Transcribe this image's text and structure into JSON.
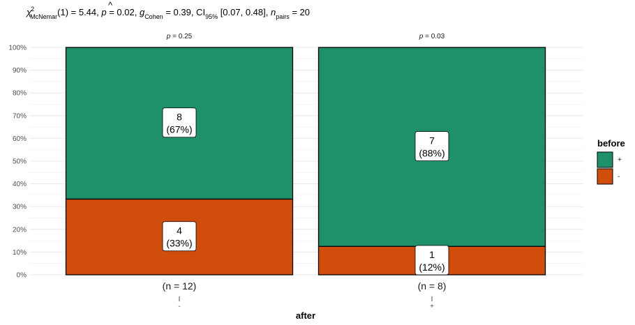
{
  "subtitle": {
    "stat_symbol": "χ",
    "stat_sup": "2",
    "stat_sub": "McNemar",
    "stat_value": "(1) = 5.44, ",
    "p_symbol": "p",
    "p_value": " = 0.02, ",
    "effect_symbol": "g",
    "effect_hat": "^",
    "effect_sub": "Cohen",
    "effect_value": " = 0.39, CI",
    "ci_sub": "95%",
    "ci_value": " [0.07, 0.48], ",
    "n_symbol": "n",
    "n_sub": "pairs",
    "n_value": " = 20"
  },
  "chart_data": {
    "type": "bar",
    "stacked": true,
    "percent": true,
    "xlabel": "after",
    "ylabel": "",
    "ylim": [
      0,
      100
    ],
    "yticks": [
      "0%",
      "10%",
      "20%",
      "30%",
      "40%",
      "50%",
      "60%",
      "70%",
      "80%",
      "90%",
      "100%"
    ],
    "categories": [
      "-",
      "+"
    ],
    "category_counts": [
      "(n = 12)",
      "(n = 8)"
    ],
    "category_pvalues": [
      {
        "symbol": "p",
        "text": " = 0.25"
      },
      {
        "symbol": "p",
        "text": " = 0.03"
      }
    ],
    "series": [
      {
        "name": "-",
        "color": "#D04D0B",
        "counts": [
          4,
          1
        ],
        "values": [
          33.3,
          12.5
        ],
        "labels": [
          "(33%)",
          "(12%)"
        ]
      },
      {
        "name": "+",
        "color": "#1E9168",
        "counts": [
          8,
          7
        ],
        "values": [
          66.7,
          87.5
        ],
        "labels": [
          "(67%)",
          "(88%)"
        ]
      }
    ],
    "legend": {
      "title": "before",
      "position": "right",
      "entries": [
        {
          "name": "+",
          "color": "#1E9168"
        },
        {
          "name": "-",
          "color": "#D04D0B"
        }
      ]
    },
    "grid": true
  }
}
